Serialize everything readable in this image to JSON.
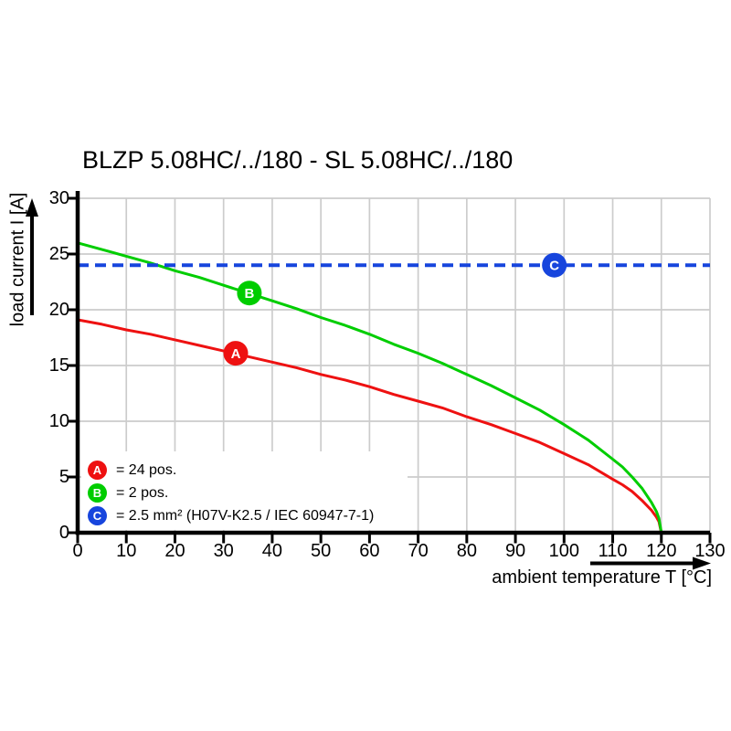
{
  "title": "BLZP 5.08HC/../180 - SL 5.08HC/../180",
  "chart_data": {
    "type": "line",
    "title": "BLZP 5.08HC/../180 - SL 5.08HC/../180",
    "xlabel": "ambient temperature T [°C]",
    "ylabel": "load current I [A]",
    "xlim": [
      0,
      130
    ],
    "ylim": [
      0,
      30
    ],
    "x_ticks": [
      0,
      10,
      20,
      30,
      40,
      50,
      60,
      70,
      80,
      90,
      100,
      110,
      120,
      130
    ],
    "y_ticks": [
      0,
      5,
      10,
      15,
      20,
      25,
      30
    ],
    "grid": true,
    "legend_position": "bottom-left",
    "colors": {
      "series_a": "#ee1111",
      "series_b": "#00cd00",
      "series_c": "#1745dd",
      "grid": "#cccccc",
      "axis": "#000000"
    },
    "series": [
      {
        "id": "A",
        "letter": "A",
        "legend_label": "= 24 pos.",
        "color": "#ee1111",
        "style": "solid",
        "points": [
          [
            0,
            19.1
          ],
          [
            5,
            18.7
          ],
          [
            10,
            18.2
          ],
          [
            15,
            17.8
          ],
          [
            20,
            17.3
          ],
          [
            25,
            16.8
          ],
          [
            30,
            16.3
          ],
          [
            35,
            15.8
          ],
          [
            40,
            15.3
          ],
          [
            45,
            14.8
          ],
          [
            50,
            14.2
          ],
          [
            55,
            13.7
          ],
          [
            60,
            13.1
          ],
          [
            65,
            12.4
          ],
          [
            70,
            11.8
          ],
          [
            75,
            11.2
          ],
          [
            80,
            10.4
          ],
          [
            85,
            9.7
          ],
          [
            90,
            8.9
          ],
          [
            95,
            8.1
          ],
          [
            100,
            7.1
          ],
          [
            105,
            6.1
          ],
          [
            110,
            4.8
          ],
          [
            112,
            4.3
          ],
          [
            114,
            3.7
          ],
          [
            116,
            2.9
          ],
          [
            118,
            2.0
          ],
          [
            119,
            1.4
          ],
          [
            119.5,
            1.0
          ],
          [
            120,
            0
          ]
        ],
        "marker_at": [
          32.5,
          16.1
        ]
      },
      {
        "id": "B",
        "letter": "B",
        "legend_label": "= 2 pos.",
        "color": "#00cd00",
        "style": "solid",
        "points": [
          [
            0,
            26.0
          ],
          [
            5,
            25.4
          ],
          [
            10,
            24.8
          ],
          [
            15,
            24.2
          ],
          [
            20,
            23.5
          ],
          [
            25,
            22.9
          ],
          [
            30,
            22.2
          ],
          [
            35,
            21.5
          ],
          [
            40,
            20.8
          ],
          [
            45,
            20.1
          ],
          [
            50,
            19.3
          ],
          [
            55,
            18.6
          ],
          [
            60,
            17.8
          ],
          [
            65,
            16.9
          ],
          [
            70,
            16.1
          ],
          [
            75,
            15.2
          ],
          [
            80,
            14.2
          ],
          [
            85,
            13.2
          ],
          [
            90,
            12.1
          ],
          [
            95,
            11.0
          ],
          [
            100,
            9.7
          ],
          [
            105,
            8.3
          ],
          [
            110,
            6.6
          ],
          [
            112,
            5.9
          ],
          [
            114,
            5.0
          ],
          [
            116,
            4.0
          ],
          [
            118,
            2.7
          ],
          [
            119,
            1.9
          ],
          [
            119.5,
            1.3
          ],
          [
            120,
            0
          ]
        ],
        "marker_at": [
          35.3,
          21.5
        ]
      },
      {
        "id": "C",
        "letter": "C",
        "legend_label": "= 2.5 mm² (H07V-K2.5 / IEC 60947-7-1)",
        "color": "#1745dd",
        "style": "dashed-horizontal",
        "value": 24,
        "marker_at": [
          98,
          24
        ]
      }
    ]
  }
}
